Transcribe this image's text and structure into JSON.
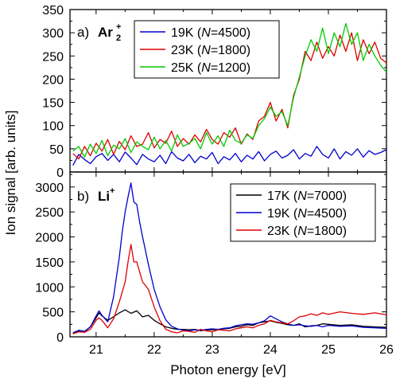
{
  "chart_data": [
    {
      "type": "line",
      "panel": "a",
      "panel_label": "a)",
      "ion": "Ar",
      "ion_sub": "2",
      "ion_sup": "+",
      "xlabel": "Photon energy [eV]",
      "ylabel": "Ion signal [arb. units]",
      "xlim": [
        20.55,
        26.0
      ],
      "ylim": [
        0,
        350
      ],
      "yticks": [
        "0",
        "50",
        "100",
        "150",
        "200",
        "250",
        "300",
        "350"
      ],
      "yticks_values": [
        0,
        50,
        100,
        150,
        200,
        250,
        300,
        350
      ],
      "legend_position": "top-center",
      "legend_box": true,
      "series": [
        {
          "name": "19K (N=4500)",
          "legend_parts": [
            "19K (",
            "N",
            "=4500)"
          ],
          "color": "#0000cc",
          "x": [
            20.6,
            20.7,
            20.8,
            20.9,
            21.0,
            21.1,
            21.2,
            21.3,
            21.4,
            21.5,
            21.6,
            21.7,
            21.8,
            21.9,
            22.0,
            22.1,
            22.2,
            22.3,
            22.4,
            22.5,
            22.6,
            22.7,
            22.8,
            22.9,
            23.0,
            23.1,
            23.2,
            23.3,
            23.4,
            23.5,
            23.6,
            23.7,
            23.8,
            23.9,
            24.0,
            24.1,
            24.2,
            24.3,
            24.4,
            24.5,
            24.6,
            24.7,
            24.8,
            24.9,
            25.0,
            25.1,
            25.2,
            25.3,
            25.4,
            25.5,
            25.6,
            25.7,
            25.8,
            25.9,
            26.0
          ],
          "y": [
            14,
            38,
            27,
            18,
            33,
            40,
            25,
            38,
            22,
            43,
            30,
            16,
            38,
            28,
            22,
            36,
            18,
            44,
            30,
            24,
            38,
            20,
            34,
            28,
            42,
            18,
            33,
            26,
            40,
            22,
            36,
            28,
            44,
            24,
            38,
            45,
            30,
            36,
            48,
            28,
            40,
            34,
            55,
            38,
            30,
            50,
            28,
            44,
            36,
            50,
            32,
            46,
            38,
            42,
            48
          ]
        },
        {
          "name": "23K (N=1800)",
          "legend_parts": [
            "23K (",
            "N",
            "=1800)"
          ],
          "color": "#dd0000",
          "x": [
            20.6,
            20.7,
            20.8,
            20.9,
            21.0,
            21.1,
            21.2,
            21.3,
            21.4,
            21.5,
            21.6,
            21.7,
            21.8,
            21.9,
            22.0,
            22.1,
            22.2,
            22.3,
            22.4,
            22.5,
            22.6,
            22.7,
            22.8,
            22.9,
            23.0,
            23.1,
            23.2,
            23.3,
            23.4,
            23.5,
            23.6,
            23.7,
            23.8,
            23.9,
            24.0,
            24.1,
            24.2,
            24.3,
            24.4,
            24.5,
            24.6,
            24.7,
            24.8,
            24.9,
            25.0,
            25.1,
            25.2,
            25.3,
            25.4,
            25.5,
            25.6,
            25.7,
            25.8,
            25.9,
            26.0
          ],
          "y": [
            40,
            28,
            55,
            35,
            62,
            45,
            70,
            38,
            66,
            48,
            78,
            55,
            60,
            85,
            52,
            70,
            62,
            88,
            55,
            72,
            60,
            80,
            65,
            92,
            70,
            60,
            85,
            75,
            95,
            60,
            82,
            70,
            110,
            120,
            150,
            110,
            135,
            95,
            165,
            200,
            260,
            240,
            280,
            245,
            270,
            250,
            295,
            260,
            300,
            240,
            285,
            255,
            280,
            245,
            235
          ]
        },
        {
          "name": "25K (N=1200)",
          "legend_parts": [
            "25K (",
            "N",
            "=1200)"
          ],
          "color": "#00cc00",
          "x": [
            20.6,
            20.7,
            20.8,
            20.9,
            21.0,
            21.1,
            21.2,
            21.3,
            21.4,
            21.5,
            21.6,
            21.7,
            21.8,
            21.9,
            22.0,
            22.1,
            22.2,
            22.3,
            22.4,
            22.5,
            22.6,
            22.7,
            22.8,
            22.9,
            23.0,
            23.1,
            23.2,
            23.3,
            23.4,
            23.5,
            23.6,
            23.7,
            23.8,
            23.9,
            24.0,
            24.1,
            24.2,
            24.3,
            24.4,
            24.5,
            24.6,
            24.7,
            24.8,
            24.9,
            25.0,
            25.1,
            25.2,
            25.3,
            25.4,
            25.5,
            25.6,
            25.7,
            25.8,
            25.9,
            26.0
          ],
          "y": [
            45,
            55,
            32,
            60,
            40,
            68,
            35,
            58,
            50,
            72,
            42,
            65,
            55,
            48,
            75,
            50,
            68,
            45,
            80,
            55,
            62,
            72,
            50,
            85,
            60,
            78,
            55,
            90,
            68,
            62,
            80,
            72,
            100,
            115,
            140,
            120,
            130,
            100,
            160,
            205,
            250,
            285,
            260,
            310,
            255,
            300,
            270,
            320,
            275,
            300,
            240,
            275,
            250,
            230,
            215
          ]
        }
      ]
    },
    {
      "type": "line",
      "panel": "b",
      "panel_label": "b)",
      "ion": "Li",
      "ion_sup": "+",
      "xlabel": "Photon energy [eV]",
      "ylabel": "Ion signal [arb. units]",
      "xlim": [
        20.55,
        26.0
      ],
      "ylim": [
        0,
        3300
      ],
      "xticks": [
        "21",
        "22",
        "23",
        "24",
        "25",
        "26"
      ],
      "xticks_values": [
        21,
        22,
        23,
        24,
        25,
        26
      ],
      "yticks": [
        "0",
        "500",
        "1000",
        "1500",
        "2000",
        "2500",
        "3000"
      ],
      "yticks_values": [
        0,
        500,
        1000,
        1500,
        2000,
        2500,
        3000
      ],
      "legend_position": "top-right",
      "legend_box": true,
      "series": [
        {
          "name": "17K (N=7000)",
          "legend_parts": [
            "17K (",
            "N",
            "=7000)"
          ],
          "color": "#000000",
          "x": [
            20.6,
            20.7,
            20.8,
            20.9,
            21.0,
            21.05,
            21.1,
            21.2,
            21.3,
            21.4,
            21.5,
            21.6,
            21.7,
            21.8,
            21.9,
            22.0,
            22.1,
            22.2,
            22.3,
            22.4,
            22.5,
            22.6,
            22.7,
            22.8,
            22.9,
            23.0,
            23.1,
            23.2,
            23.3,
            23.4,
            23.5,
            23.6,
            23.7,
            23.8,
            23.9,
            24.0,
            24.1,
            24.2,
            24.3,
            24.4,
            24.5,
            24.6,
            24.7,
            24.8,
            24.9,
            25.0,
            25.2,
            25.4,
            25.6,
            25.8,
            26.0
          ],
          "y": [
            60,
            120,
            100,
            200,
            380,
            480,
            420,
            330,
            400,
            480,
            540,
            470,
            520,
            400,
            430,
            330,
            260,
            200,
            170,
            150,
            150,
            140,
            150,
            120,
            140,
            140,
            150,
            160,
            170,
            200,
            210,
            240,
            230,
            280,
            300,
            320,
            290,
            270,
            240,
            230,
            260,
            200,
            220,
            230,
            260,
            250,
            230,
            240,
            210,
            200,
            190
          ]
        },
        {
          "name": "19K (N=4500)",
          "legend_parts": [
            "19K (",
            "N",
            "=4500)"
          ],
          "color": "#0000cc",
          "x": [
            20.6,
            20.7,
            20.8,
            20.9,
            21.0,
            21.05,
            21.1,
            21.2,
            21.3,
            21.4,
            21.45,
            21.5,
            21.55,
            21.6,
            21.65,
            21.7,
            21.75,
            21.8,
            21.9,
            22.0,
            22.1,
            22.2,
            22.3,
            22.4,
            22.5,
            22.6,
            22.7,
            22.8,
            22.9,
            23.0,
            23.1,
            23.2,
            23.3,
            23.4,
            23.5,
            23.6,
            23.7,
            23.8,
            23.9,
            24.0,
            24.1,
            24.2,
            24.3,
            24.4,
            24.5,
            24.6,
            24.7,
            24.8,
            24.9,
            25.0,
            25.2,
            25.4,
            25.6,
            25.8,
            26.0
          ],
          "y": [
            80,
            130,
            110,
            200,
            420,
            520,
            430,
            300,
            800,
            1600,
            2100,
            2500,
            2800,
            3080,
            2700,
            2650,
            2300,
            2000,
            1450,
            950,
            600,
            340,
            210,
            160,
            130,
            120,
            140,
            130,
            150,
            160,
            150,
            170,
            180,
            220,
            240,
            260,
            250,
            280,
            320,
            420,
            360,
            300,
            260,
            230,
            240,
            220,
            210,
            230,
            200,
            230,
            210,
            220,
            190,
            180,
            170
          ]
        },
        {
          "name": "23K (N=1800)",
          "legend_parts": [
            "23K (",
            "N",
            "=1800)"
          ],
          "color": "#dd0000",
          "x": [
            20.6,
            20.7,
            20.8,
            20.9,
            21.0,
            21.05,
            21.1,
            21.2,
            21.3,
            21.4,
            21.5,
            21.55,
            21.6,
            21.65,
            21.7,
            21.75,
            21.8,
            21.9,
            22.0,
            22.1,
            22.2,
            22.3,
            22.4,
            22.5,
            22.6,
            22.7,
            22.8,
            22.9,
            23.0,
            23.1,
            23.2,
            23.3,
            23.4,
            23.5,
            23.6,
            23.7,
            23.8,
            23.9,
            24.0,
            24.1,
            24.2,
            24.3,
            24.4,
            24.5,
            24.6,
            24.7,
            24.8,
            24.9,
            25.0,
            25.2,
            25.4,
            25.6,
            25.8,
            26.0
          ],
          "y": [
            60,
            100,
            90,
            150,
            330,
            380,
            330,
            180,
            360,
            700,
            1100,
            1500,
            1850,
            1500,
            1500,
            1300,
            1100,
            950,
            600,
            320,
            150,
            100,
            80,
            120,
            110,
            90,
            150,
            120,
            100,
            140,
            130,
            120,
            160,
            180,
            200,
            180,
            230,
            260,
            330,
            300,
            280,
            260,
            320,
            400,
            420,
            460,
            430,
            480,
            450,
            500,
            470,
            450,
            480,
            440
          ]
        }
      ]
    }
  ]
}
